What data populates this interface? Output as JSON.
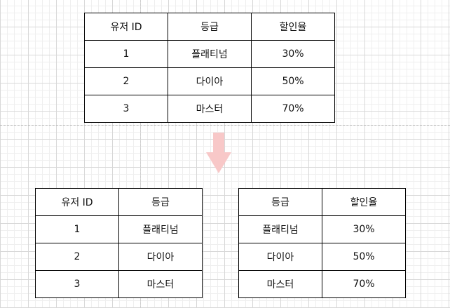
{
  "original_table": {
    "headers": [
      "유저 ID",
      "등급",
      "할인율"
    ],
    "rows": [
      [
        "1",
        "플래티넘",
        "30%"
      ],
      [
        "2",
        "다이아",
        "50%"
      ],
      [
        "3",
        "마스터",
        "70%"
      ]
    ]
  },
  "users_table": {
    "headers": [
      "유저 ID",
      "등급"
    ],
    "rows": [
      [
        "1",
        "플래티넘"
      ],
      [
        "2",
        "다이아"
      ],
      [
        "3",
        "마스터"
      ]
    ]
  },
  "grades_table": {
    "headers": [
      "등급",
      "할인율"
    ],
    "rows": [
      [
        "플래티넘",
        "30%"
      ],
      [
        "다이아",
        "50%"
      ],
      [
        "마스터",
        "70%"
      ]
    ]
  },
  "colors": {
    "arrow": "#f8c8c8",
    "border": "#000000",
    "grid": "#d8d8d8"
  }
}
